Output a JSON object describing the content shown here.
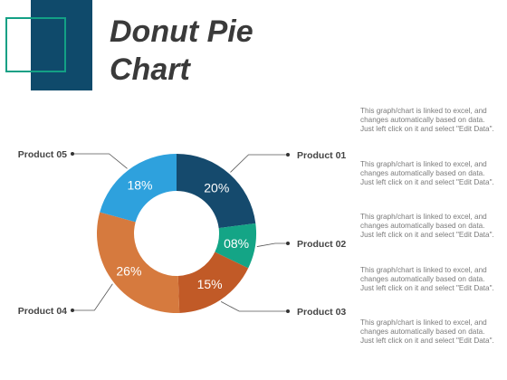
{
  "title": "Donut Pie Chart",
  "chart_data": {
    "type": "pie",
    "variant": "donut",
    "title": "Donut Pie Chart",
    "categories": [
      "Product 01",
      "Product 02",
      "Product 03",
      "Product 04",
      "Product 05"
    ],
    "values": [
      20,
      8,
      15,
      26,
      18
    ],
    "data_labels": [
      "20%",
      "08%",
      "15%",
      "26%",
      "18%"
    ],
    "colors": [
      "#154a6d",
      "#14a586",
      "#c15a27",
      "#d67a3e",
      "#2ea1dd"
    ],
    "label_color": "#ffffff",
    "leader_color": "#555555"
  },
  "descriptions": [
    "This graph/chart is linked to excel, and changes automatically based on data. Just left click on it and select \"Edit Data\".",
    "This graph/chart is linked to excel, and changes automatically based on data. Just left click on it and select \"Edit Data\".",
    "This graph/chart is linked to excel, and changes automatically based on data. Just left click on it and select \"Edit Data\".",
    "This graph/chart is linked to excel, and changes automatically based on data. Just left click on it and select \"Edit Data\".",
    "This graph/chart is linked to excel, and changes automatically based on data. Just left click on it and select \"Edit Data\"."
  ]
}
